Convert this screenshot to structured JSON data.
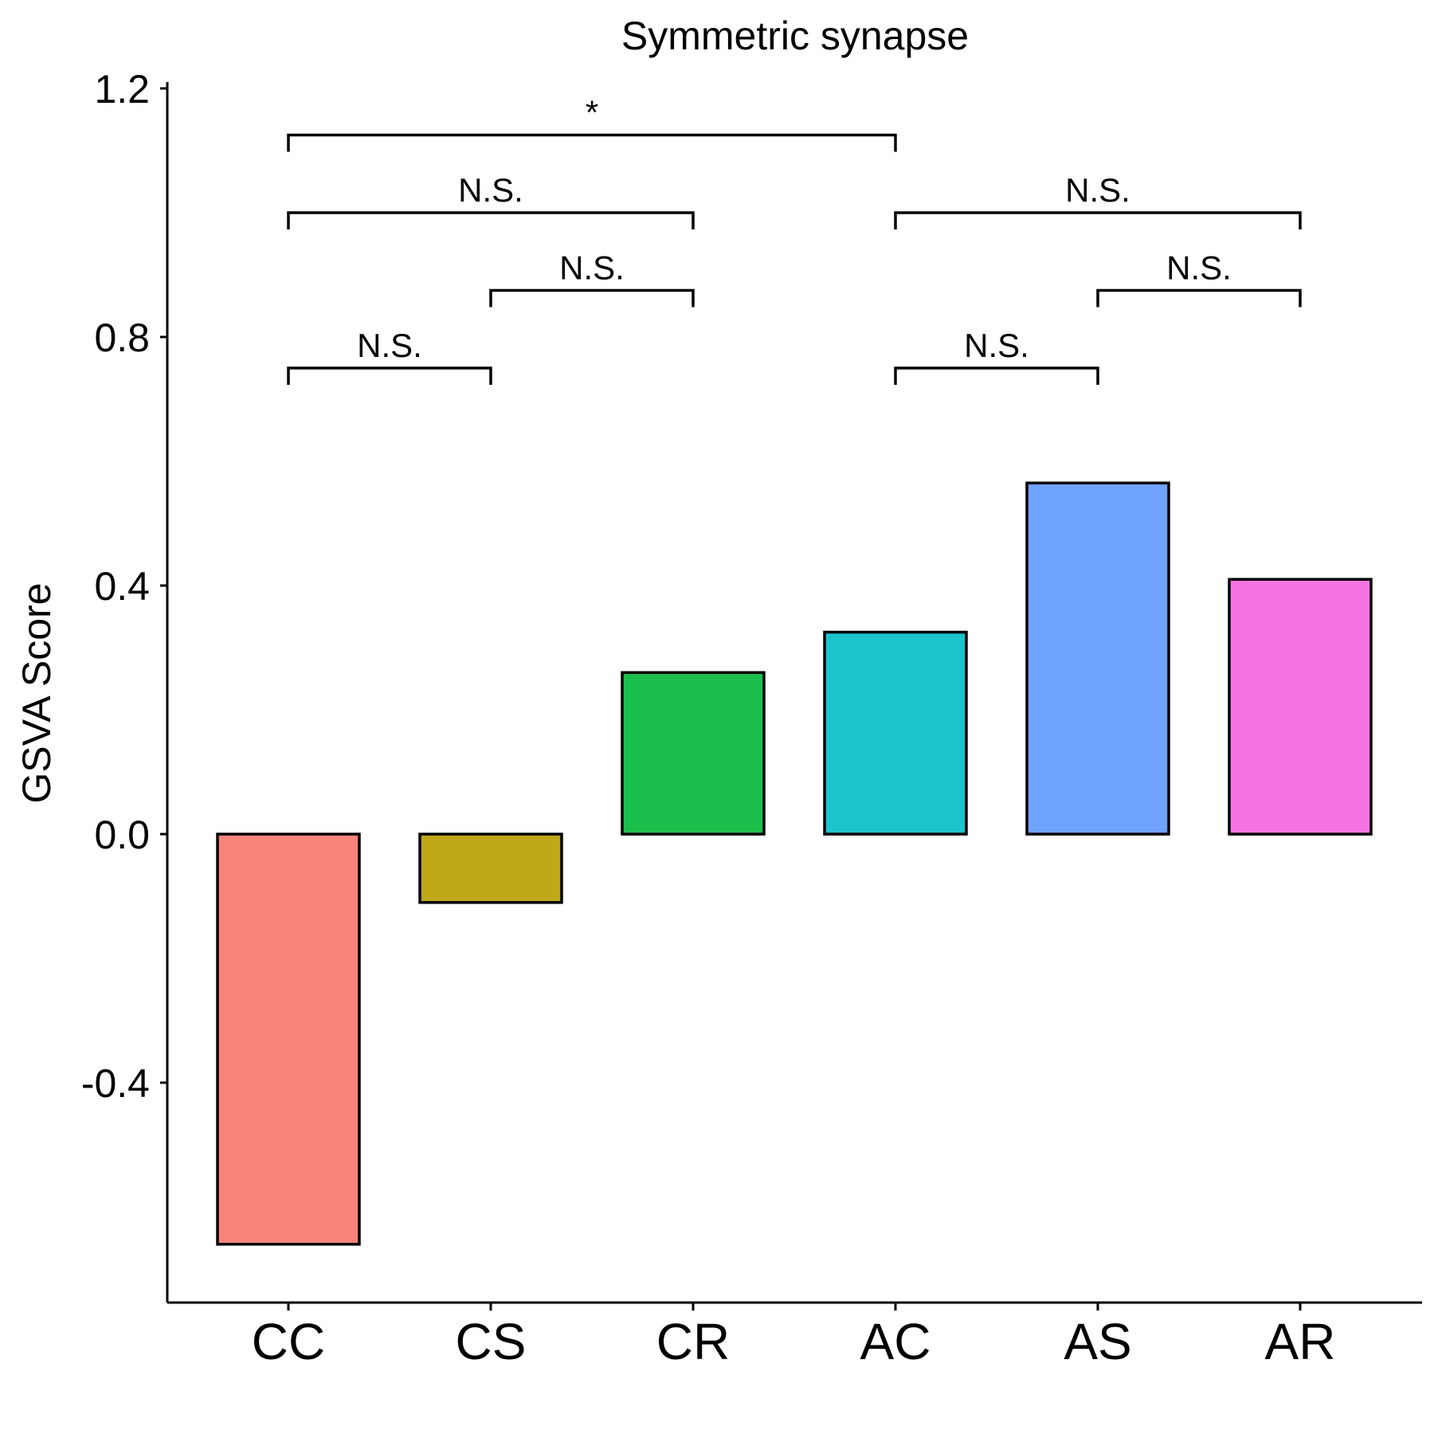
{
  "chart_data": {
    "type": "bar",
    "title": "Symmetric synapse",
    "xlabel": "",
    "ylabel": "GSVA Score",
    "categories": [
      "CC",
      "CS",
      "CR",
      "AC",
      "AS",
      "AR"
    ],
    "values": [
      -0.66,
      -0.11,
      0.26,
      0.325,
      0.565,
      0.41
    ],
    "colors": [
      "#F8847A",
      "#BFA818",
      "#1CBF4C",
      "#1CC4CC",
      "#70A3FD",
      "#F574E1"
    ],
    "ylim": [
      -0.75,
      1.2
    ],
    "yticks": [
      -0.4,
      0.0,
      0.4,
      0.8,
      1.2
    ],
    "ytick_labels": [
      "-0.4",
      "0.0",
      "0.4",
      "0.8",
      "1.2"
    ],
    "grid": false,
    "legend": "none",
    "comparisons": [
      {
        "from": "CC",
        "to": "CS",
        "y": 0.75,
        "label": "N.S."
      },
      {
        "from": "CS",
        "to": "CR",
        "y": 0.875,
        "label": "N.S."
      },
      {
        "from": "CC",
        "to": "CR",
        "y": 1.0,
        "label": "N.S."
      },
      {
        "from": "CC",
        "to": "AC",
        "y": 1.125,
        "label": "*"
      },
      {
        "from": "AC",
        "to": "AS",
        "y": 0.75,
        "label": "N.S."
      },
      {
        "from": "AS",
        "to": "AR",
        "y": 0.875,
        "label": "N.S."
      },
      {
        "from": "AC",
        "to": "AR",
        "y": 1.0,
        "label": "N.S."
      }
    ]
  }
}
